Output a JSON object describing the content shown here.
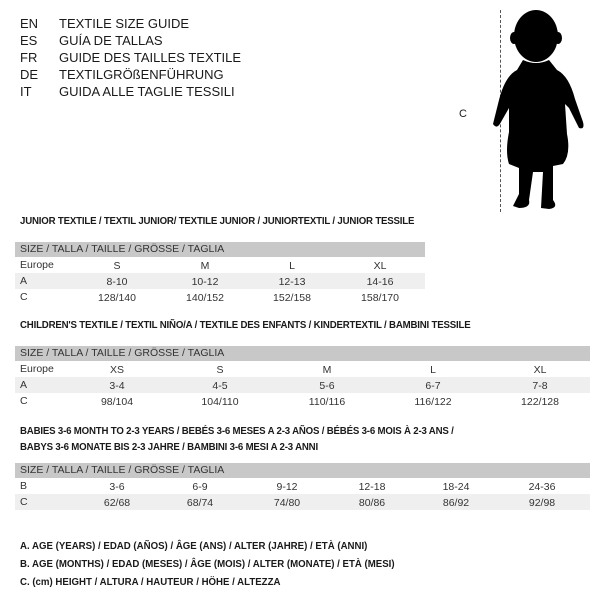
{
  "languages": [
    {
      "code": "EN",
      "text": "TEXTILE SIZE GUIDE"
    },
    {
      "code": "ES",
      "text": "GUÍA DE TALLAS"
    },
    {
      "code": "FR",
      "text": "GUIDE DES TAILLES TEXTILE"
    },
    {
      "code": "DE",
      "text": "TEXTILGRÖßENFÜHRUNG"
    },
    {
      "code": "IT",
      "text": "GUIDA ALLE TAGLIE TESSILI"
    }
  ],
  "figure": {
    "label": "C",
    "icon": "child-silhouette-icon"
  },
  "colors": {
    "header_bg": "#c8c8c8",
    "shade_bg": "#efefef"
  },
  "tables": [
    {
      "title": "JUNIOR TEXTILE / TEXTIL JUNIOR/ TEXTILE JUNIOR / JUNIORTEXTIL / JUNIOR TESSILE",
      "header": "SIZE / TALLA / TAILLE / GRÖSSE / TAGLIA",
      "rows": [
        {
          "label": "Europe",
          "cells": [
            "S",
            "M",
            "L",
            "XL"
          ]
        },
        {
          "label": "A",
          "cells": [
            "8-10",
            "10-12",
            "12-13",
            "14-16"
          ]
        },
        {
          "label": "C",
          "cells": [
            "128/140",
            "140/152",
            "152/158",
            "158/170"
          ]
        }
      ]
    },
    {
      "title": "CHILDREN'S TEXTILE / TEXTIL NIÑO/A / TEXTILE DES ENFANTS / KINDERTEXTIL / BAMBINI TESSILE",
      "header": "SIZE / TALLA / TAILLE / GRÖSSE / TAGLIA",
      "rows": [
        {
          "label": "Europe",
          "cells": [
            "XS",
            "S",
            "M",
            "L",
            "XL"
          ]
        },
        {
          "label": "A",
          "cells": [
            "3-4",
            "4-5",
            "5-6",
            "6-7",
            "7-8"
          ]
        },
        {
          "label": "C",
          "cells": [
            "98/104",
            "104/110",
            "110/116",
            "116/122",
            "122/128"
          ]
        }
      ]
    },
    {
      "title": "BABIES 3-6 MONTH TO 2-3 YEARS / BEBÉS 3-6 MESES A 2-3 AÑOS / BÉBÉS 3-6 MOIS À 2-3 ANS /",
      "title2": "BABYS 3-6 MONATE BIS 2-3 JAHRE / BAMBINI 3-6 MESI A 2-3 ANNI",
      "header": "SIZE / TALLA / TAILLE / GRÖSSE / TAGLIA",
      "rows": [
        {
          "label": "B",
          "cells": [
            "3-6",
            "6-9",
            "9-12",
            "12-18",
            "18-24",
            "24-36"
          ]
        },
        {
          "label": "C",
          "cells": [
            "62/68",
            "68/74",
            "74/80",
            "80/86",
            "86/92",
            "92/98"
          ]
        }
      ]
    }
  ],
  "legend": [
    "A. AGE (YEARS) / EDAD (AÑOS) / ÂGE (ANS) / ALTER (JAHRE) / ETÀ (ANNI)",
    "B. AGE (MONTHS) / EDAD (MESES) / ÂGE (MOIS) / ALTER (MONATE) / ETÀ (MESI)",
    "C. (cm) HEIGHT / ALTURA / HAUTEUR / HÖHE / ALTEZZA"
  ]
}
